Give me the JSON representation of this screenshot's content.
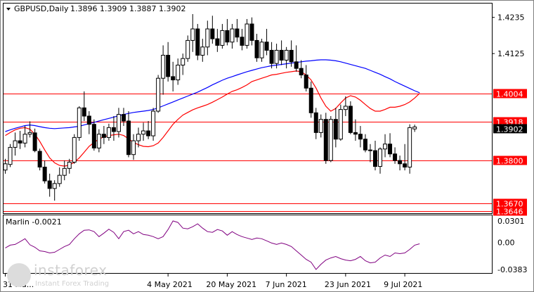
{
  "header": {
    "symbol_label": "GBPUSD,Daily",
    "ohlc": "1.3896 1.3909 1.3887 1.3902"
  },
  "indicator": {
    "label": "Marlin -0.0021",
    "axis_ticks": [
      {
        "value": 0.0301,
        "label": "0.0301"
      },
      {
        "value": 0.0,
        "label": "0.00"
      },
      {
        "value": -0.0383,
        "label": "-0.0383"
      }
    ]
  },
  "watermark": {
    "brand": "instaforex",
    "tagline": "Instant Forex Trading"
  },
  "colors": {
    "up_candle": "#ffffff",
    "down_candle": "#000000",
    "ma_red": "#ff0000",
    "ma_blue": "#0000ff",
    "level_line": "#ff0000",
    "level_label_bg": "#ff0000",
    "oscillator": "#800080",
    "price_label_bg": "#000000"
  },
  "chart_data": {
    "type": "candlestick",
    "title": "GBPUSD,Daily",
    "x_labels": [
      {
        "index": 0,
        "label": "31 Ma..."
      },
      {
        "index": 33,
        "label": "4 May 2021"
      },
      {
        "index": 45,
        "label": "20 May 2021"
      },
      {
        "index": 57,
        "label": "7 Jun 2021"
      },
      {
        "index": 69,
        "label": "23 Jun 2021"
      },
      {
        "index": 81,
        "label": "9 Jul 2021"
      }
    ],
    "y_ticks": [
      {
        "value": 1.4235,
        "label": "1.4235"
      },
      {
        "value": 1.4125,
        "label": "1.4125"
      }
    ],
    "levels": [
      {
        "value": 1.4004,
        "label": "1.4004"
      },
      {
        "value": 1.3918,
        "label": "1.3918"
      },
      {
        "value": 1.38,
        "label": "1.3800"
      },
      {
        "value": 1.367,
        "label": "1.3670"
      },
      {
        "value": 1.3646,
        "label": "1.3646"
      }
    ],
    "current_price": {
      "value": 1.3902,
      "label": "1.3902"
    },
    "ylim": [
      1.3642,
      1.4275
    ],
    "candles": [
      [
        1.3771,
        1.3805,
        1.376,
        1.379
      ],
      [
        1.3788,
        1.385,
        1.378,
        1.384
      ],
      [
        1.384,
        1.3885,
        1.3815,
        1.386
      ],
      [
        1.386,
        1.389,
        1.3835,
        1.3853
      ],
      [
        1.3853,
        1.3905,
        1.384,
        1.388
      ],
      [
        1.388,
        1.3919,
        1.387,
        1.3885
      ],
      [
        1.3884,
        1.3897,
        1.3825,
        1.383
      ],
      [
        1.3828,
        1.3836,
        1.377,
        1.378
      ],
      [
        1.378,
        1.38,
        1.373,
        1.3738
      ],
      [
        1.3738,
        1.376,
        1.369,
        1.3715
      ],
      [
        1.3715,
        1.374,
        1.3678,
        1.373
      ],
      [
        1.373,
        1.3779,
        1.372,
        1.3755
      ],
      [
        1.3755,
        1.38,
        1.374,
        1.3776
      ],
      [
        1.3776,
        1.3805,
        1.376,
        1.3795
      ],
      [
        1.3795,
        1.388,
        1.379,
        1.387
      ],
      [
        1.387,
        1.3965,
        1.386,
        1.396
      ],
      [
        1.396,
        1.401,
        1.392,
        1.3935
      ],
      [
        1.3935,
        1.395,
        1.388,
        1.391
      ],
      [
        1.391,
        1.3925,
        1.383,
        1.3838
      ],
      [
        1.3838,
        1.3895,
        1.3825,
        1.388
      ],
      [
        1.388,
        1.3905,
        1.385,
        1.387
      ],
      [
        1.387,
        1.3912,
        1.386,
        1.39
      ],
      [
        1.39,
        1.3935,
        1.386,
        1.3888
      ],
      [
        1.3888,
        1.396,
        1.387,
        1.394
      ],
      [
        1.394,
        1.396,
        1.3905,
        1.392
      ],
      [
        1.392,
        1.395,
        1.381,
        1.3818
      ],
      [
        1.3818,
        1.388,
        1.3802,
        1.386
      ],
      [
        1.386,
        1.39,
        1.384,
        1.388
      ],
      [
        1.388,
        1.3915,
        1.386,
        1.389
      ],
      [
        1.389,
        1.392,
        1.3865,
        1.3875
      ],
      [
        1.3875,
        1.396,
        1.386,
        1.395
      ],
      [
        1.395,
        1.406,
        1.3945,
        1.405
      ],
      [
        1.405,
        1.415,
        1.4,
        1.412
      ],
      [
        1.412,
        1.416,
        1.404,
        1.4055
      ],
      [
        1.4055,
        1.41,
        1.401,
        1.4045
      ],
      [
        1.4045,
        1.411,
        1.403,
        1.409
      ],
      [
        1.409,
        1.4125,
        1.406,
        1.411
      ],
      [
        1.411,
        1.418,
        1.41,
        1.4165
      ],
      [
        1.4165,
        1.4245,
        1.413,
        1.42
      ],
      [
        1.42,
        1.4215,
        1.4105,
        1.412
      ],
      [
        1.412,
        1.417,
        1.41,
        1.4145
      ],
      [
        1.4145,
        1.4225,
        1.412,
        1.42
      ],
      [
        1.42,
        1.424,
        1.4155,
        1.417
      ],
      [
        1.417,
        1.42,
        1.413,
        1.415
      ],
      [
        1.415,
        1.4215,
        1.414,
        1.4195
      ],
      [
        1.4195,
        1.423,
        1.415,
        1.416
      ],
      [
        1.416,
        1.4215,
        1.414,
        1.42
      ],
      [
        1.42,
        1.423,
        1.416,
        1.4175
      ],
      [
        1.4175,
        1.42,
        1.4135,
        1.415
      ],
      [
        1.415,
        1.423,
        1.414,
        1.4215
      ],
      [
        1.4215,
        1.4235,
        1.415,
        1.4165
      ],
      [
        1.4165,
        1.4185,
        1.41,
        1.4112
      ],
      [
        1.4112,
        1.417,
        1.41,
        1.416
      ],
      [
        1.416,
        1.42,
        1.412,
        1.4135
      ],
      [
        1.4135,
        1.416,
        1.408,
        1.4095
      ],
      [
        1.4095,
        1.4155,
        1.408,
        1.4135
      ],
      [
        1.4135,
        1.4165,
        1.409,
        1.4105
      ],
      [
        1.4105,
        1.4145,
        1.408,
        1.4135
      ],
      [
        1.4135,
        1.4165,
        1.4085,
        1.41
      ],
      [
        1.41,
        1.415,
        1.407,
        1.408
      ],
      [
        1.408,
        1.4105,
        1.405,
        1.406
      ],
      [
        1.406,
        1.409,
        1.401,
        1.402
      ],
      [
        1.402,
        1.404,
        1.393,
        1.3945
      ],
      [
        1.3945,
        1.396,
        1.3865,
        1.3885
      ],
      [
        1.3885,
        1.394,
        1.387,
        1.3925
      ],
      [
        1.3925,
        1.3945,
        1.379,
        1.38
      ],
      [
        1.38,
        1.3935,
        1.3795,
        1.3925
      ],
      [
        1.3925,
        1.396,
        1.384,
        1.3865
      ],
      [
        1.3865,
        1.397,
        1.386,
        1.3955
      ],
      [
        1.3955,
        1.3995,
        1.3935,
        1.3965
      ],
      [
        1.3965,
        1.398,
        1.388,
        1.3885
      ],
      [
        1.3885,
        1.3925,
        1.386,
        1.388
      ],
      [
        1.388,
        1.3905,
        1.384,
        1.3865
      ],
      [
        1.3865,
        1.388,
        1.3825,
        1.3832
      ],
      [
        1.3832,
        1.385,
        1.3795,
        1.383
      ],
      [
        1.383,
        1.386,
        1.377,
        1.3782
      ],
      [
        1.3782,
        1.384,
        1.376,
        1.3835
      ],
      [
        1.3835,
        1.388,
        1.381,
        1.385
      ],
      [
        1.385,
        1.3883,
        1.381,
        1.382
      ],
      [
        1.382,
        1.384,
        1.379,
        1.38
      ],
      [
        1.38,
        1.3815,
        1.377,
        1.379
      ],
      [
        1.379,
        1.385,
        1.377,
        1.378
      ],
      [
        1.378,
        1.391,
        1.376,
        1.39
      ],
      [
        1.3896,
        1.3909,
        1.3887,
        1.3902
      ]
    ],
    "ma_red": [
      1.3876,
      1.3885,
      1.3893,
      1.3898,
      1.39,
      1.3895,
      1.388,
      1.3858,
      1.3832,
      1.3808,
      1.3793,
      1.3785,
      1.3783,
      1.3786,
      1.3795,
      1.3808,
      1.3825,
      1.3843,
      1.3855,
      1.3865,
      1.3872,
      1.3876,
      1.3878,
      1.388,
      1.3876,
      1.3866,
      1.3855,
      1.3848,
      1.3843,
      1.3842,
      1.3845,
      1.3853,
      1.387,
      1.389,
      1.391,
      1.3925,
      1.3938,
      1.3946,
      1.3954,
      1.396,
      1.3965,
      1.397,
      1.3977,
      1.3985,
      1.3993,
      1.4002,
      1.401,
      1.4015,
      1.4022,
      1.403,
      1.404,
      1.4045,
      1.405,
      1.4055,
      1.406,
      1.4062,
      1.4065,
      1.4068,
      1.407,
      1.4072,
      1.407,
      1.406,
      1.4045,
      1.402,
      1.399,
      1.3965,
      1.395,
      1.3958,
      1.3975,
      1.399,
      1.3997,
      1.3993,
      1.3983,
      1.397,
      1.3958,
      1.395,
      1.395,
      1.3955,
      1.3962,
      1.3962,
      1.3965,
      1.397,
      1.3978,
      1.399,
      1.4004
    ],
    "ma_blue": [
      1.3888,
      1.3893,
      1.3898,
      1.3902,
      1.3906,
      1.3908,
      1.3906,
      1.3903,
      1.39,
      1.3898,
      1.3897,
      1.3898,
      1.3899,
      1.39,
      1.3902,
      1.3904,
      1.3908,
      1.3912,
      1.3916,
      1.392,
      1.3924,
      1.3928,
      1.3932,
      1.3936,
      1.394,
      1.3943,
      1.3946,
      1.3948,
      1.395,
      1.3952,
      1.3955,
      1.396,
      1.3966,
      1.3972,
      1.3978,
      1.3984,
      1.399,
      1.3996,
      1.4002,
      1.4008,
      1.4015,
      1.4022,
      1.403,
      1.4037,
      1.4044,
      1.405,
      1.4055,
      1.406,
      1.4065,
      1.407,
      1.4074,
      1.4078,
      1.4082,
      1.4085,
      1.4088,
      1.409,
      1.4092,
      1.4094,
      1.4096,
      1.4098,
      1.41,
      1.4102,
      1.4103,
      1.4105,
      1.4106,
      1.4106,
      1.4105,
      1.4103,
      1.41,
      1.4096,
      1.4092,
      1.4088,
      1.4084,
      1.408,
      1.4074,
      1.4068,
      1.4062,
      1.4055,
      1.4048,
      1.404,
      1.4033,
      1.4026,
      1.4019,
      1.4012,
      1.4006
    ],
    "marlin": [
      -0.008,
      -0.004,
      -0.003,
      0.001,
      0.005,
      -0.0035,
      -0.007,
      -0.012,
      -0.013,
      -0.015,
      -0.014,
      -0.01,
      -0.006,
      -0.003,
      0.005,
      0.012,
      0.017,
      0.0175,
      0.015,
      0.008,
      0.013,
      0.0185,
      0.014,
      0.005,
      0.015,
      0.017,
      0.012,
      0.015,
      0.011,
      0.01,
      0.008,
      0.005,
      0.008,
      0.018,
      0.0301,
      0.028,
      0.02,
      0.019,
      0.022,
      0.026,
      0.02,
      0.015,
      0.014,
      0.018,
      0.016,
      0.01,
      0.015,
      0.011,
      0.008,
      0.006,
      0.004,
      0.006,
      0.005,
      0.002,
      -0.001,
      -0.003,
      -0.001,
      -0.003,
      -0.006,
      -0.012,
      -0.018,
      -0.024,
      -0.028,
      -0.0383,
      -0.031,
      -0.025,
      -0.022,
      -0.02,
      -0.023,
      -0.025,
      -0.026,
      -0.024,
      -0.02,
      -0.026,
      -0.029,
      -0.028,
      -0.022,
      -0.018,
      -0.02,
      -0.015,
      -0.016,
      -0.015,
      -0.01,
      -0.004,
      -0.0021
    ]
  }
}
